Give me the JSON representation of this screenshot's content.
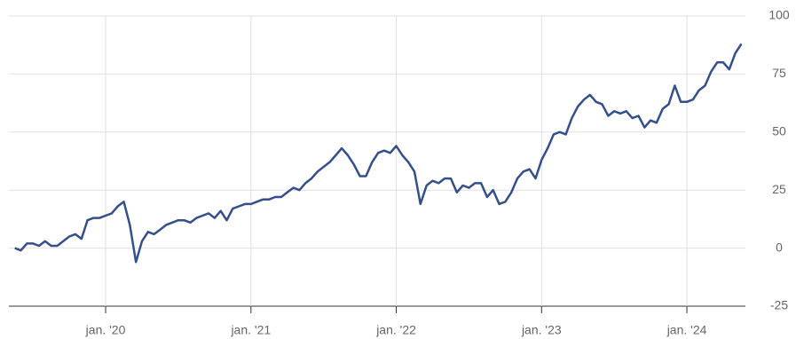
{
  "chart_data": {
    "type": "line",
    "categories": [
      null,
      null,
      null,
      null,
      null,
      null,
      null,
      null,
      null,
      null,
      null,
      null,
      null,
      null,
      null,
      "jan. '20",
      null,
      null,
      null,
      null,
      null,
      null,
      null,
      null,
      null,
      null,
      null,
      null,
      null,
      null,
      null,
      null,
      null,
      null,
      null,
      null,
      null,
      null,
      null,
      "jan. '21",
      null,
      null,
      null,
      null,
      null,
      null,
      null,
      null,
      null,
      null,
      null,
      null,
      null,
      null,
      null,
      null,
      null,
      null,
      null,
      null,
      null,
      null,
      null,
      "jan. '22",
      null,
      null,
      null,
      null,
      null,
      null,
      null,
      null,
      null,
      null,
      null,
      null,
      null,
      null,
      null,
      null,
      null,
      null,
      null,
      null,
      null,
      null,
      null,
      "jan. '23",
      null,
      null,
      null,
      null,
      null,
      null,
      null,
      null,
      null,
      null,
      null,
      null,
      null,
      null,
      null,
      null,
      null,
      null,
      null,
      null,
      null,
      null,
      null,
      "jan. '24",
      null,
      null,
      null,
      null,
      null,
      null,
      null,
      null,
      null
    ],
    "series": [
      {
        "color": "#34508c",
        "values": [
          0,
          -1,
          2,
          2,
          1,
          3,
          1,
          1,
          3,
          5,
          6,
          4,
          12,
          13,
          13,
          14,
          15,
          18,
          20,
          10,
          -6,
          3,
          7,
          6,
          8,
          10,
          11,
          12,
          12,
          11,
          13,
          14,
          15,
          13,
          16,
          12,
          17,
          18,
          19,
          19,
          20,
          21,
          21,
          22,
          22,
          24,
          26,
          25,
          28,
          30,
          33,
          35,
          37,
          40,
          43,
          40,
          36,
          31,
          31,
          37,
          41,
          42,
          41,
          44,
          40,
          37,
          33,
          19,
          27,
          29,
          28,
          30,
          30,
          24,
          27,
          26,
          28,
          28,
          22,
          25,
          19,
          20,
          24,
          30,
          33,
          34,
          30,
          38,
          43,
          49,
          50,
          49,
          56,
          61,
          64,
          66,
          63,
          62,
          57,
          59,
          58,
          59,
          56,
          57,
          52,
          55,
          54,
          60,
          62,
          70,
          63,
          63,
          64,
          68,
          70,
          76,
          80,
          80,
          77,
          84,
          88
        ]
      }
    ],
    "ylim": [
      -25,
      100
    ],
    "yticks": [
      -25,
      0,
      25,
      50,
      75,
      100
    ],
    "grid": true
  }
}
